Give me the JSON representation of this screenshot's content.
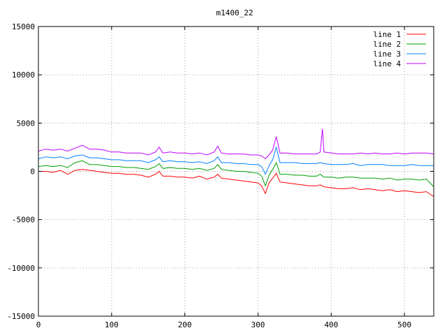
{
  "chart_data": {
    "type": "line",
    "title": "m1400_22",
    "xlabel": "",
    "ylabel": "",
    "xlim": [
      0,
      540
    ],
    "ylim": [
      -15000,
      15000
    ],
    "x_ticks": [
      0,
      100,
      200,
      300,
      400,
      500
    ],
    "y_ticks": [
      -15000,
      -10000,
      -5000,
      0,
      5000,
      10000,
      15000
    ],
    "grid": true,
    "legend_position": "top-right",
    "series": [
      {
        "name": "line 1",
        "color": "#ff0000",
        "x": [
          0,
          10,
          20,
          30,
          40,
          50,
          60,
          70,
          80,
          90,
          100,
          110,
          120,
          130,
          140,
          150,
          160,
          165,
          170,
          180,
          190,
          200,
          210,
          220,
          230,
          240,
          245,
          250,
          260,
          270,
          280,
          290,
          300,
          305,
          310,
          315,
          320,
          325,
          330,
          340,
          350,
          360,
          370,
          380,
          385,
          390,
          400,
          410,
          420,
          430,
          440,
          450,
          460,
          470,
          480,
          490,
          500,
          510,
          520,
          530,
          540
        ],
        "y": [
          0,
          0,
          -100,
          100,
          -300,
          100,
          200,
          100,
          0,
          -100,
          -200,
          -200,
          -300,
          -300,
          -400,
          -600,
          -300,
          0,
          -500,
          -500,
          -600,
          -600,
          -700,
          -500,
          -800,
          -600,
          -300,
          -700,
          -800,
          -900,
          -1000,
          -1100,
          -1200,
          -1500,
          -2300,
          -1200,
          -700,
          -200,
          -1100,
          -1200,
          -1300,
          -1400,
          -1500,
          -1500,
          -1400,
          -1600,
          -1700,
          -1800,
          -1800,
          -1700,
          -1900,
          -1800,
          -1900,
          -2000,
          -1900,
          -2100,
          -2000,
          -2100,
          -2200,
          -2100,
          -2600
        ]
      },
      {
        "name": "line 2",
        "color": "#00a000",
        "x": [
          0,
          10,
          20,
          30,
          40,
          50,
          60,
          70,
          80,
          90,
          100,
          110,
          120,
          130,
          140,
          150,
          160,
          165,
          170,
          180,
          190,
          200,
          210,
          220,
          230,
          240,
          245,
          250,
          260,
          270,
          280,
          290,
          300,
          305,
          310,
          315,
          320,
          325,
          330,
          340,
          350,
          360,
          370,
          380,
          385,
          390,
          400,
          410,
          420,
          430,
          440,
          450,
          460,
          470,
          480,
          490,
          500,
          510,
          520,
          530,
          540
        ],
        "y": [
          500,
          600,
          500,
          600,
          400,
          900,
          1100,
          700,
          700,
          600,
          500,
          500,
          400,
          400,
          300,
          200,
          500,
          800,
          300,
          400,
          300,
          300,
          200,
          300,
          100,
          300,
          700,
          200,
          100,
          0,
          0,
          -100,
          -200,
          -500,
          -1500,
          -400,
          200,
          900,
          -300,
          -300,
          -400,
          -400,
          -500,
          -500,
          -300,
          -600,
          -600,
          -700,
          -600,
          -600,
          -700,
          -700,
          -700,
          -800,
          -700,
          -900,
          -800,
          -800,
          -900,
          -800,
          -1600
        ]
      },
      {
        "name": "line 3",
        "color": "#0080ff",
        "x": [
          0,
          10,
          20,
          30,
          40,
          50,
          60,
          70,
          80,
          90,
          100,
          110,
          120,
          130,
          140,
          150,
          160,
          165,
          170,
          180,
          190,
          200,
          210,
          220,
          230,
          240,
          245,
          250,
          260,
          270,
          280,
          290,
          300,
          305,
          310,
          315,
          320,
          325,
          330,
          340,
          350,
          360,
          370,
          380,
          385,
          390,
          400,
          410,
          420,
          430,
          440,
          450,
          460,
          470,
          480,
          490,
          500,
          510,
          520,
          530,
          540
        ],
        "y": [
          1300,
          1500,
          1400,
          1500,
          1300,
          1600,
          1700,
          1400,
          1400,
          1300,
          1200,
          1200,
          1100,
          1100,
          1100,
          900,
          1200,
          1500,
          1000,
          1100,
          1000,
          1000,
          900,
          1000,
          800,
          1100,
          1500,
          900,
          900,
          800,
          800,
          700,
          700,
          500,
          -300,
          600,
          1200,
          2500,
          900,
          900,
          900,
          800,
          800,
          800,
          900,
          800,
          700,
          700,
          700,
          800,
          600,
          700,
          700,
          700,
          600,
          600,
          600,
          700,
          600,
          600,
          600
        ]
      },
      {
        "name": "line 4",
        "color": "#c000ff",
        "x": [
          0,
          10,
          20,
          30,
          40,
          50,
          60,
          70,
          80,
          90,
          100,
          110,
          120,
          130,
          140,
          150,
          160,
          165,
          170,
          180,
          190,
          200,
          210,
          220,
          230,
          240,
          245,
          250,
          260,
          270,
          280,
          290,
          300,
          305,
          310,
          315,
          320,
          325,
          330,
          340,
          350,
          360,
          370,
          380,
          385,
          388,
          390,
          400,
          410,
          420,
          430,
          440,
          450,
          460,
          470,
          480,
          490,
          500,
          510,
          520,
          530,
          540
        ],
        "y": [
          2100,
          2300,
          2200,
          2300,
          2100,
          2400,
          2700,
          2300,
          2300,
          2200,
          2000,
          2000,
          1900,
          1900,
          1900,
          1700,
          2000,
          2500,
          1900,
          2000,
          1900,
          1900,
          1800,
          1900,
          1700,
          2000,
          2600,
          1900,
          1800,
          1800,
          1800,
          1700,
          1700,
          1600,
          1300,
          1700,
          2200,
          3600,
          1900,
          1900,
          1800,
          1800,
          1800,
          1800,
          2000,
          4400,
          2000,
          1900,
          1800,
          1800,
          1800,
          1900,
          1800,
          1900,
          1800,
          1800,
          1900,
          1800,
          1900,
          1900,
          1900,
          1800
        ]
      }
    ]
  }
}
